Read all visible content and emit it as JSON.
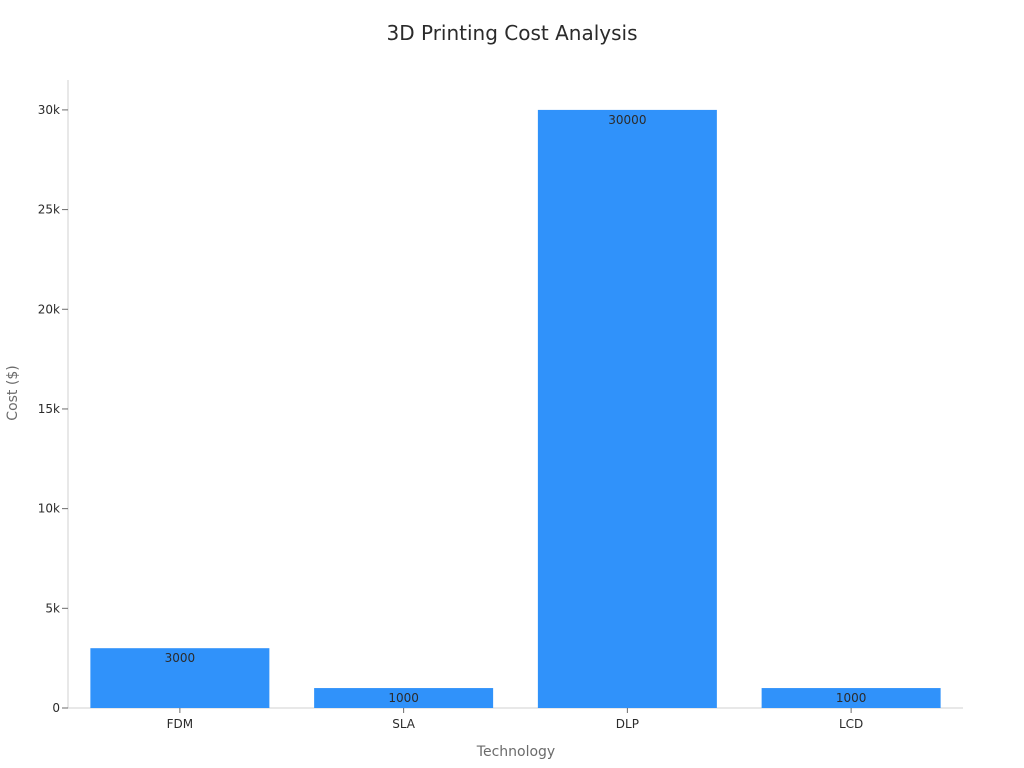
{
  "chart_data": {
    "type": "bar",
    "title": "3D Printing Cost Analysis",
    "xlabel": "Technology",
    "ylabel": "Cost ($)",
    "categories": [
      "FDM",
      "SLA",
      "DLP",
      "LCD"
    ],
    "values": [
      3000,
      1000,
      30000,
      1000
    ],
    "data_labels": [
      "3000",
      "1000",
      "30000",
      "1000"
    ],
    "ylim": [
      0,
      31500
    ],
    "yticks": [
      0,
      5000,
      10000,
      15000,
      20000,
      25000,
      30000
    ],
    "ytick_labels": [
      "0",
      "5k",
      "10k",
      "15k",
      "20k",
      "25k",
      "30k"
    ],
    "grid": false,
    "legend": "none",
    "bar_color": "#3092fa"
  }
}
